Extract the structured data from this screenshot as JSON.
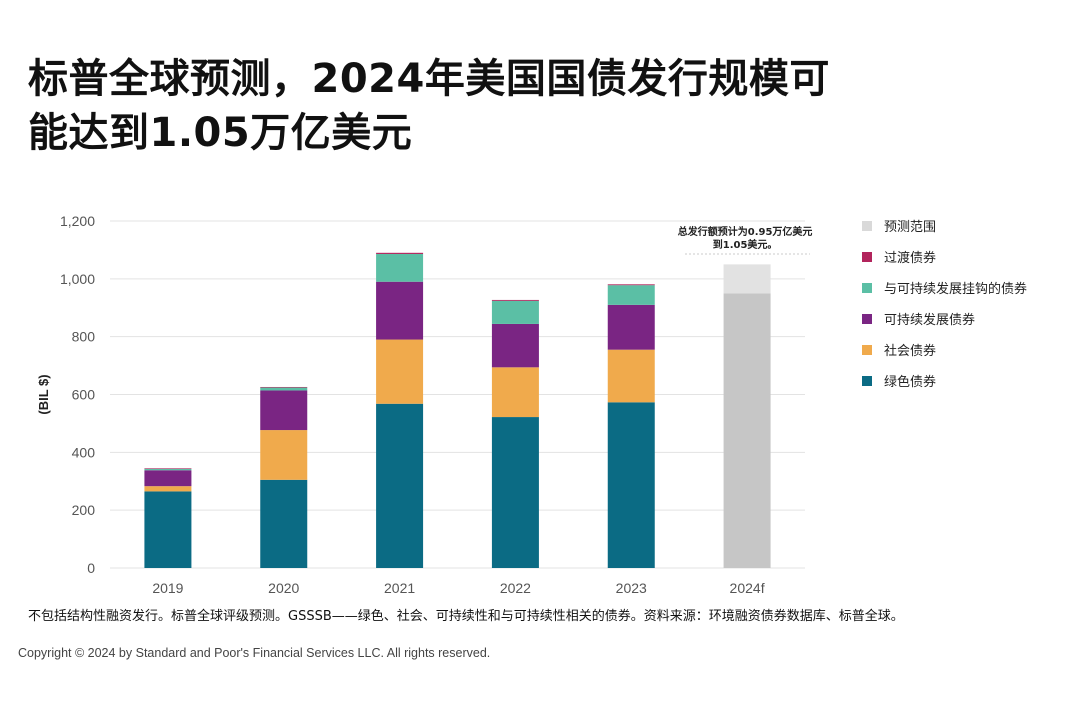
{
  "title_line1": "标普全球预测，2024年美国国债发行规模可",
  "title_line2": "能达到1.05万亿美元",
  "note": "不包括结构性融资发行。标普全球评级预测。GSSSB——绿色、社会、可持续性和与可持续性相关的债券。资料来源：环境融资债券数据库、标普全球。",
  "copyright": "Copyright © 2024 by Standard and Poor's Financial Services LLC. All rights reserved.",
  "chart_data": {
    "type": "bar",
    "stacked": true,
    "categories": [
      "2019",
      "2020",
      "2021",
      "2022",
      "2023",
      "2024f"
    ],
    "ylabel": "(BIL $)",
    "ylim": [
      0,
      1200
    ],
    "yticks": [
      0,
      200,
      400,
      600,
      800,
      1000,
      1200
    ],
    "ytick_labels": [
      "0",
      "200",
      "400",
      "600",
      "800",
      "1,000",
      "1,200"
    ],
    "grid": true,
    "legend_position": "right",
    "series": [
      {
        "name": "绿色债券",
        "color": "#0b6b84",
        "values": [
          265,
          305,
          568,
          522,
          573,
          null
        ]
      },
      {
        "name": "社会债券",
        "color": "#f0aa4c",
        "values": [
          18,
          172,
          222,
          172,
          182,
          null
        ]
      },
      {
        "name": "可持续发展债券",
        "color": "#7a2583",
        "values": [
          55,
          137,
          200,
          150,
          155,
          null
        ]
      },
      {
        "name": "与可持续发展挂钩的债券",
        "color": "#5bbfa5",
        "values": [
          5,
          10,
          96,
          80,
          68,
          null
        ]
      },
      {
        "name": "过渡债券",
        "color": "#b2245c",
        "values": [
          2,
          2,
          4,
          3,
          3,
          null
        ]
      }
    ],
    "forecast": {
      "name": "预测范围",
      "category": "2024f",
      "low": 950,
      "high": 1050,
      "color_low": "#c6c6c6",
      "color_range": "#e2e2e2"
    },
    "legend_order": [
      "预测范围",
      "过渡债券",
      "与可持续发展挂钩的债券",
      "可持续发展债券",
      "社会债券",
      "绿色债券"
    ],
    "legend_colors": [
      "#d9d9d9",
      "#b2245c",
      "#5bbfa5",
      "#7a2583",
      "#f0aa4c",
      "#0b6b84"
    ],
    "annotation_line1": "总发行额预计为0.95万亿美元",
    "annotation_line2": "到1.05美元。"
  }
}
